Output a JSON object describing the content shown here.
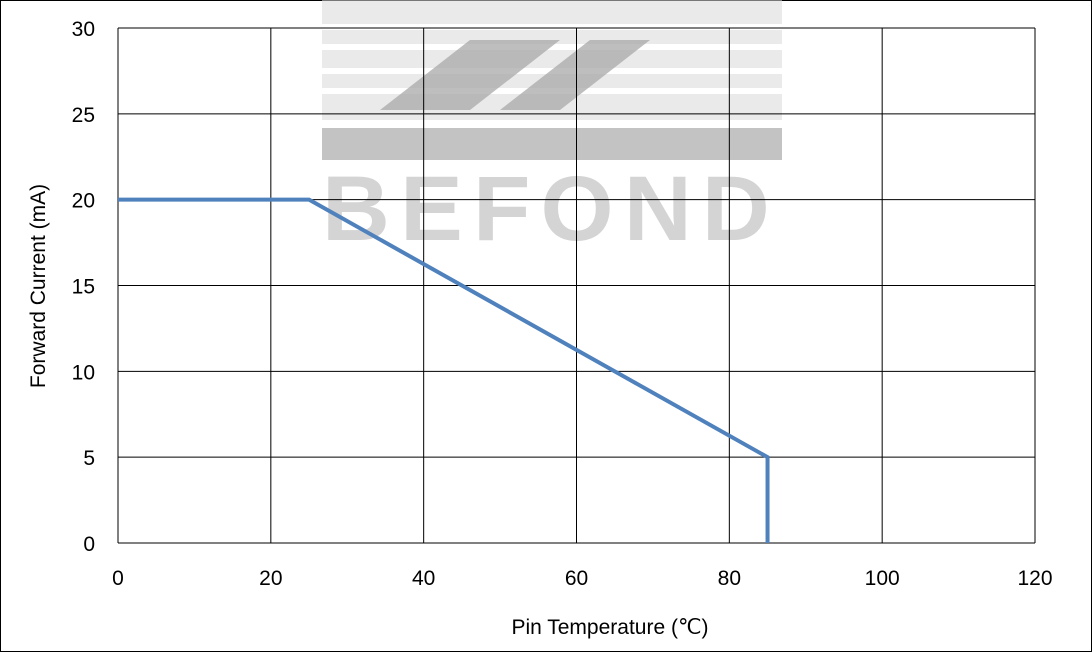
{
  "chart_data": {
    "type": "line",
    "title": "",
    "xlabel": "Pin Temperature (℃)",
    "ylabel": "Forward Current (mA)",
    "xlim": [
      0,
      120
    ],
    "ylim": [
      0,
      30
    ],
    "x_ticks": [
      0,
      20,
      40,
      60,
      80,
      100,
      120
    ],
    "y_ticks": [
      0,
      5,
      10,
      15,
      20,
      25,
      30
    ],
    "x_tick_labels": [
      "0",
      "20",
      "40",
      "60",
      "80",
      "100",
      "120"
    ],
    "y_tick_labels": [
      "0",
      "5",
      "10",
      "15",
      "20",
      "25",
      "30"
    ],
    "grid": true,
    "series": [
      {
        "color": "#4f81bd",
        "x": [
          0,
          25,
          85,
          85
        ],
        "y": [
          20,
          20,
          5,
          0
        ]
      }
    ]
  },
  "watermark": {
    "text": "BEFOND"
  }
}
